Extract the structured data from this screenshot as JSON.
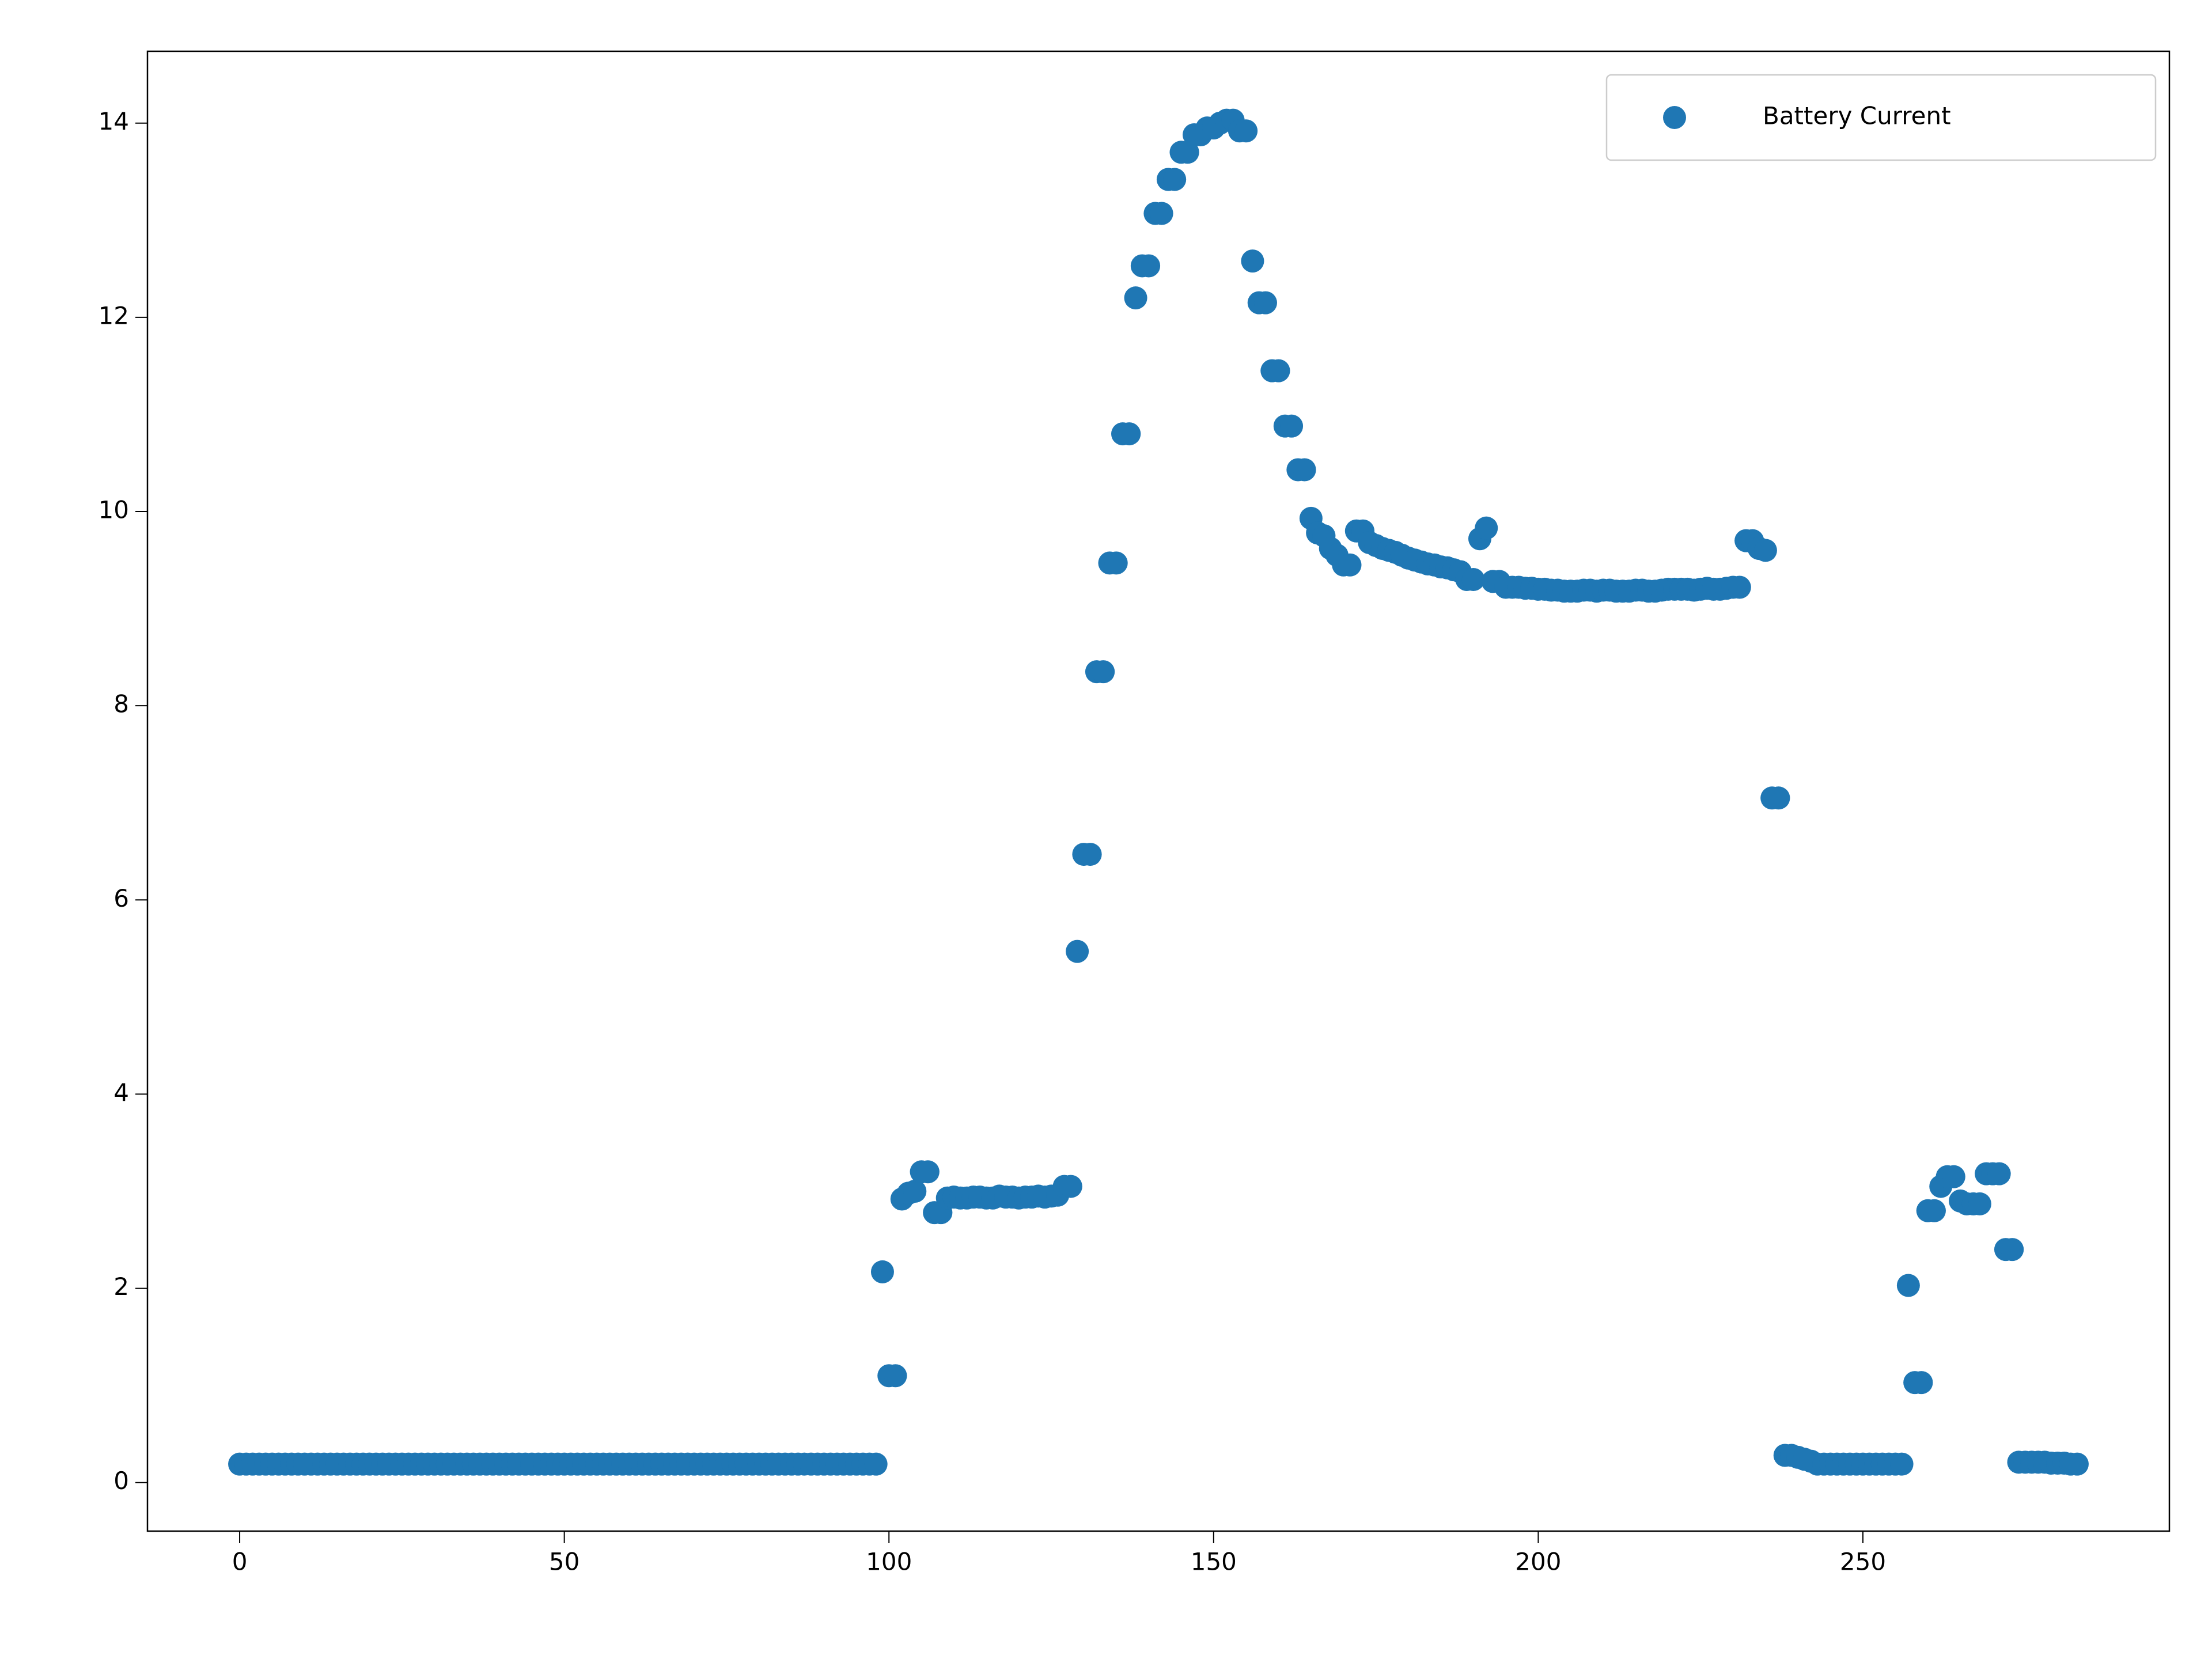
{
  "chart_data": {
    "type": "scatter",
    "x": [
      0,
      1,
      2,
      3,
      4,
      5,
      6,
      7,
      8,
      9,
      10,
      11,
      12,
      13,
      14,
      15,
      16,
      17,
      18,
      19,
      20,
      21,
      22,
      23,
      24,
      25,
      26,
      27,
      28,
      29,
      30,
      31,
      32,
      33,
      34,
      35,
      36,
      37,
      38,
      39,
      40,
      41,
      42,
      43,
      44,
      45,
      46,
      47,
      48,
      49,
      50,
      51,
      52,
      53,
      54,
      55,
      56,
      57,
      58,
      59,
      60,
      61,
      62,
      63,
      64,
      65,
      66,
      67,
      68,
      69,
      70,
      71,
      72,
      73,
      74,
      75,
      76,
      77,
      78,
      79,
      80,
      81,
      82,
      83,
      84,
      85,
      86,
      87,
      88,
      89,
      90,
      91,
      92,
      93,
      94,
      95,
      96,
      97,
      98,
      99,
      100,
      101,
      102,
      103,
      104,
      105,
      106,
      107,
      108,
      109,
      110,
      111,
      112,
      113,
      114,
      115,
      116,
      117,
      118,
      119,
      120,
      121,
      122,
      123,
      124,
      125,
      126,
      127,
      128,
      129,
      130,
      131,
      132,
      133,
      134,
      135,
      136,
      137,
      138,
      139,
      140,
      141,
      142,
      143,
      144,
      145,
      146,
      147,
      148,
      149,
      150,
      151,
      152,
      153,
      154,
      155,
      156,
      157,
      158,
      159,
      160,
      161,
      162,
      163,
      164,
      165,
      166,
      167,
      168,
      169,
      170,
      171,
      172,
      173,
      174,
      175,
      176,
      177,
      178,
      179,
      180,
      181,
      182,
      183,
      184,
      185,
      186,
      187,
      188,
      189,
      190,
      191,
      192,
      193,
      194,
      195,
      196,
      197,
      198,
      199,
      200,
      201,
      202,
      203,
      204,
      205,
      206,
      207,
      208,
      209,
      210,
      211,
      212,
      213,
      214,
      215,
      216,
      217,
      218,
      219,
      220,
      221,
      222,
      223,
      224,
      225,
      226,
      227,
      228,
      229,
      230,
      231,
      232,
      233,
      234,
      235,
      236,
      237,
      238,
      239,
      240,
      241,
      242,
      243,
      244,
      245,
      246,
      247,
      248,
      249,
      250,
      251,
      252,
      253,
      254,
      255,
      256,
      257,
      258,
      259,
      260,
      261,
      262,
      263,
      264,
      265,
      266,
      267,
      268,
      269,
      270,
      271,
      272,
      273,
      274,
      275,
      276,
      277,
      278,
      279,
      280,
      281,
      282,
      283
    ],
    "series": [
      {
        "name": "Battery Current",
        "color": "#1f77b4",
        "values": [
          0.19,
          0.19,
          0.19,
          0.19,
          0.19,
          0.19,
          0.19,
          0.19,
          0.19,
          0.19,
          0.19,
          0.19,
          0.19,
          0.19,
          0.19,
          0.19,
          0.19,
          0.19,
          0.19,
          0.19,
          0.19,
          0.19,
          0.19,
          0.19,
          0.19,
          0.19,
          0.19,
          0.19,
          0.19,
          0.19,
          0.19,
          0.19,
          0.19,
          0.19,
          0.19,
          0.19,
          0.19,
          0.19,
          0.19,
          0.19,
          0.19,
          0.19,
          0.19,
          0.19,
          0.19,
          0.19,
          0.19,
          0.19,
          0.19,
          0.19,
          0.19,
          0.19,
          0.19,
          0.19,
          0.19,
          0.19,
          0.19,
          0.19,
          0.19,
          0.19,
          0.19,
          0.19,
          0.19,
          0.19,
          0.19,
          0.19,
          0.19,
          0.19,
          0.19,
          0.19,
          0.19,
          0.19,
          0.19,
          0.19,
          0.19,
          0.19,
          0.19,
          0.19,
          0.19,
          0.19,
          0.19,
          0.19,
          0.19,
          0.19,
          0.19,
          0.19,
          0.19,
          0.19,
          0.19,
          0.19,
          0.19,
          0.19,
          0.19,
          0.19,
          0.19,
          0.19,
          0.19,
          0.19,
          0.19,
          2.17,
          1.1,
          1.1,
          2.92,
          2.98,
          3.0,
          3.2,
          3.2,
          2.78,
          2.78,
          2.93,
          2.94,
          2.93,
          2.93,
          2.94,
          2.94,
          2.93,
          2.93,
          2.95,
          2.94,
          2.94,
          2.93,
          2.94,
          2.94,
          2.95,
          2.94,
          2.95,
          2.96,
          3.05,
          3.05,
          5.47,
          6.47,
          6.47,
          8.35,
          8.35,
          9.47,
          9.47,
          10.8,
          10.8,
          12.2,
          12.53,
          12.53,
          13.07,
          13.07,
          13.42,
          13.42,
          13.7,
          13.7,
          13.88,
          13.88,
          13.95,
          13.95,
          14.0,
          14.03,
          14.03,
          13.92,
          13.92,
          12.58,
          12.15,
          12.15,
          11.45,
          11.45,
          10.88,
          10.88,
          10.43,
          10.43,
          9.93,
          9.78,
          9.75,
          9.62,
          9.55,
          9.45,
          9.45,
          9.8,
          9.8,
          9.68,
          9.65,
          9.62,
          9.6,
          9.58,
          9.55,
          9.52,
          9.5,
          9.48,
          9.46,
          9.45,
          9.43,
          9.42,
          9.4,
          9.38,
          9.3,
          9.3,
          9.72,
          9.83,
          9.28,
          9.28,
          9.22,
          9.22,
          9.22,
          9.21,
          9.21,
          9.2,
          9.2,
          9.19,
          9.19,
          9.18,
          9.18,
          9.18,
          9.19,
          9.19,
          9.18,
          9.19,
          9.19,
          9.18,
          9.18,
          9.18,
          9.19,
          9.19,
          9.18,
          9.18,
          9.19,
          9.2,
          9.2,
          9.2,
          9.2,
          9.19,
          9.2,
          9.21,
          9.2,
          9.2,
          9.21,
          9.22,
          9.22,
          9.7,
          9.7,
          9.62,
          9.6,
          7.05,
          7.05,
          0.28,
          0.28,
          0.26,
          0.24,
          0.22,
          0.19,
          0.19,
          0.19,
          0.19,
          0.19,
          0.19,
          0.19,
          0.19,
          0.19,
          0.19,
          0.19,
          0.19,
          0.19,
          0.19,
          2.03,
          1.03,
          1.03,
          2.8,
          2.8,
          3.05,
          3.15,
          3.15,
          2.9,
          2.87,
          2.87,
          2.87,
          3.18,
          3.18,
          3.18,
          2.4,
          2.4,
          0.21,
          0.21,
          0.21,
          0.21,
          0.21,
          0.2,
          0.2,
          0.2,
          0.19,
          0.19
        ]
      }
    ],
    "xlim": [
      -14.2,
      297.2
    ],
    "ylim": [
      -0.5,
      14.74
    ],
    "xticks": [
      0,
      50,
      100,
      150,
      200,
      250
    ],
    "yticks": [
      0,
      2,
      4,
      6,
      8,
      10,
      12,
      14
    ],
    "legend": "upper right"
  }
}
